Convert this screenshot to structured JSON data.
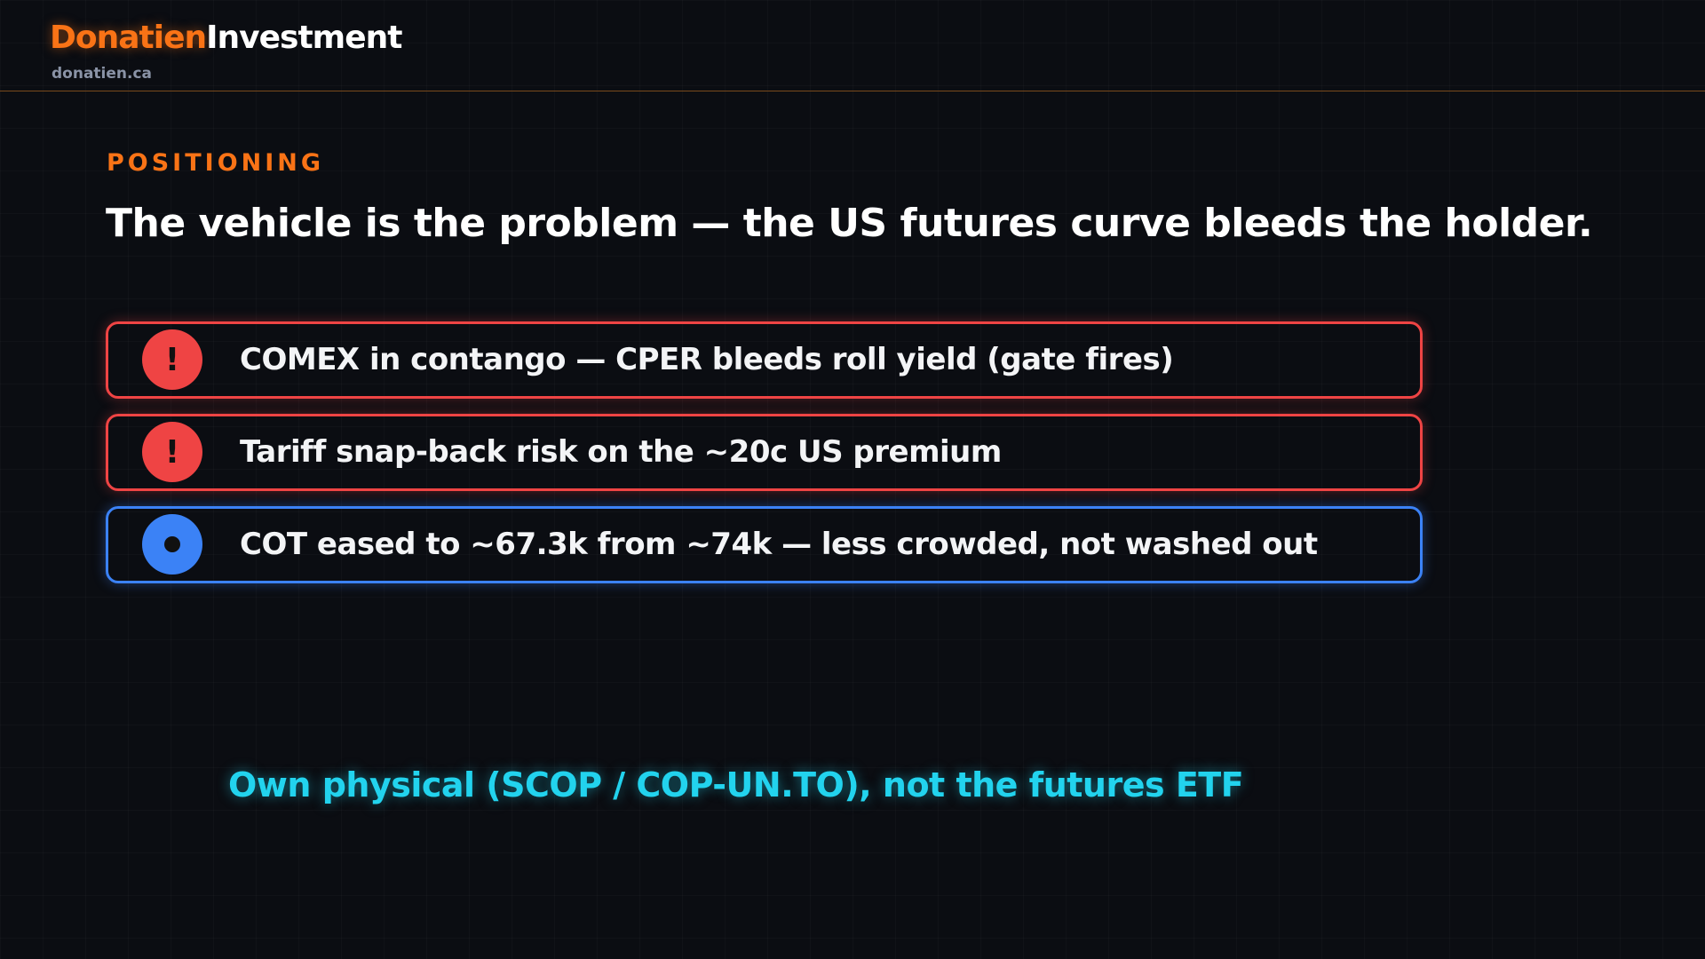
{
  "header": {
    "brand_primary": "Donatien",
    "brand_secondary": "Investment",
    "site": "donatien.ca"
  },
  "section": {
    "label": "POSITIONING",
    "title": "The vehicle is the problem — the US futures curve bleeds the holder."
  },
  "items": [
    {
      "icon": "!",
      "text": "COMEX in contango — CPER bleeds roll yield (gate fires)"
    },
    {
      "icon": "!",
      "text": "Tariff snap-back risk on the ~20c US premium"
    },
    {
      "text": "COT eased to ~67.3k from ~74k — less crowded, not washed out"
    }
  ],
  "conclusion": "Own physical (SCOP / COP-UN.TO), not the futures ETF"
}
